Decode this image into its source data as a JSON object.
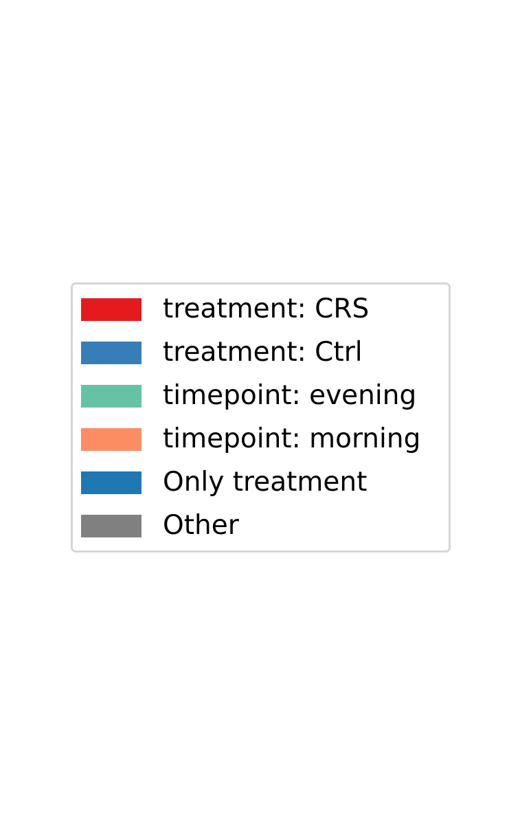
{
  "chart_data": {
    "type": "legend",
    "title": "",
    "legend": {
      "placement": "center",
      "frame": true,
      "entries": [
        {
          "label": "treatment: CRS",
          "color": "#e41a1c"
        },
        {
          "label": "treatment: Ctrl",
          "color": "#377eb8"
        },
        {
          "label": "timepoint: evening",
          "color": "#66c2a5"
        },
        {
          "label": "timepoint: morning",
          "color": "#fc8d62"
        },
        {
          "label": "Only treatment",
          "color": "#1f77b4"
        },
        {
          "label": "Other",
          "color": "#808080"
        }
      ]
    }
  }
}
